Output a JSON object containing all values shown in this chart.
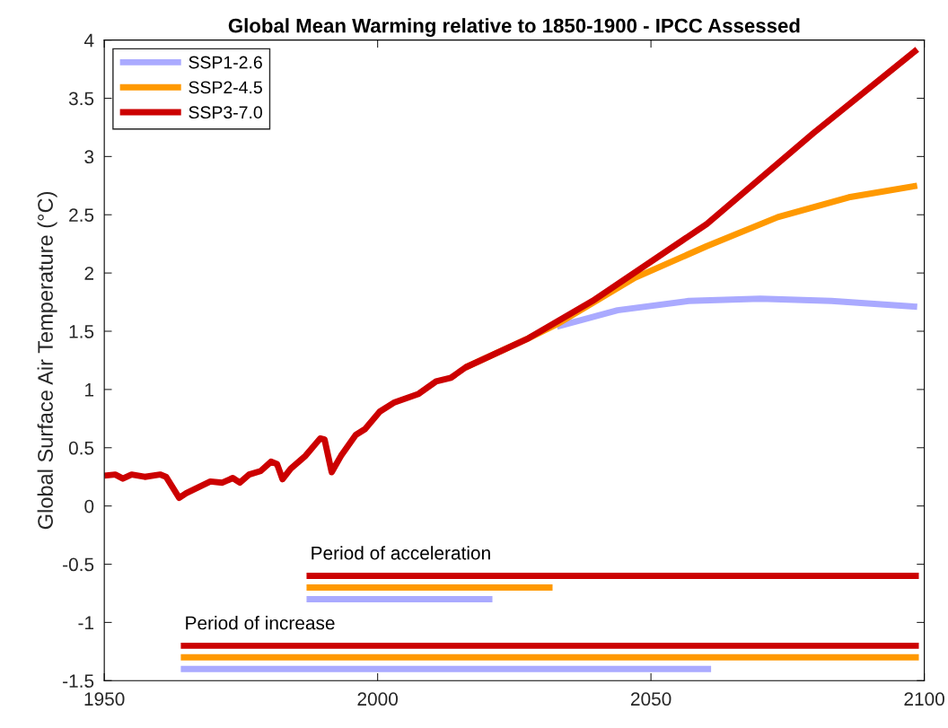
{
  "chart_data": {
    "type": "line",
    "title": "Global Mean Warming relative to 1850-1900 - IPCC Assessed",
    "ylabel": "Global Surface Air Temperature (°C)",
    "xlim": [
      1950,
      2100
    ],
    "xticks": [
      1950,
      2000,
      2050,
      2100
    ],
    "ylim": [
      -1.5,
      4
    ],
    "yticks": [
      -1.5,
      -1,
      -0.5,
      0,
      0.5,
      1,
      1.5,
      2,
      2.5,
      3,
      3.5,
      4
    ],
    "grid": false,
    "legend": "top left",
    "marker": "none",
    "line_style": "solid",
    "series": [
      {
        "name": "SSP1-2.6",
        "color": "#aaaaff",
        "x": [
          2032.8,
          2043.9,
          2056.9,
          2070,
          2083,
          2098.7
        ],
        "values": [
          1.54,
          1.68,
          1.76,
          1.78,
          1.76,
          1.71
        ]
      },
      {
        "name": "SSP2-4.5",
        "color": "#ff9900",
        "x": [
          2016.1,
          2027.6,
          2032.8,
          2047.1,
          2060.2,
          2073.2,
          2086.2,
          2098.7
        ],
        "values": [
          1.19,
          1.44,
          1.56,
          1.96,
          2.23,
          2.48,
          2.65,
          2.75
        ]
      },
      {
        "name": "SSP3-7.0",
        "color": "#cc0000",
        "x": [
          1950,
          1952,
          1953.4,
          1955,
          1957.4,
          1960.2,
          1961.3,
          1963.7,
          1965,
          1967.2,
          1969.4,
          1971.6,
          1973.5,
          1974.8,
          1976.5,
          1978.6,
          1980.5,
          1981.6,
          1982.6,
          1984.1,
          1986.8,
          1989.5,
          1990.3,
          1991.6,
          1993.3,
          1996,
          1997.7,
          2000.4,
          2003.1,
          2007.4,
          2010.7,
          2013.4,
          2016.1,
          2027.6,
          2039.3,
          2060.2,
          2079.7,
          2098.7
        ],
        "values": [
          0.26,
          0.27,
          0.235,
          0.27,
          0.25,
          0.27,
          0.25,
          0.07,
          0.11,
          0.16,
          0.21,
          0.2,
          0.24,
          0.2,
          0.27,
          0.3,
          0.38,
          0.36,
          0.23,
          0.32,
          0.43,
          0.58,
          0.57,
          0.29,
          0.43,
          0.61,
          0.66,
          0.81,
          0.89,
          0.96,
          1.07,
          1.1,
          1.19,
          1.44,
          1.76,
          2.42,
          3.2,
          3.92
        ]
      },
      {
        "color": "#cc0000",
        "x": [
          1987,
          2099
        ],
        "values": [
          -0.6,
          -0.6
        ]
      },
      {
        "color": "#ff9900",
        "x": [
          1987,
          2032
        ],
        "values": [
          -0.7,
          -0.7
        ]
      },
      {
        "color": "#aaaaff",
        "x": [
          1987,
          2021
        ],
        "values": [
          -0.8,
          -0.8
        ]
      },
      {
        "color": "#cc0000",
        "x": [
          1964,
          2099
        ],
        "values": [
          -1.2,
          -1.2
        ]
      },
      {
        "color": "#ff9900",
        "x": [
          1964,
          2099
        ],
        "values": [
          -1.3,
          -1.3
        ]
      },
      {
        "color": "#aaaaff",
        "x": [
          1964,
          2061
        ],
        "values": [
          -1.4,
          -1.4
        ]
      }
    ],
    "annotations": [
      {
        "text": "Period of acceleration",
        "x": 1987,
        "y": -0.6
      },
      {
        "text": "Period of increase",
        "x": 1964,
        "y": -1.2
      }
    ]
  }
}
